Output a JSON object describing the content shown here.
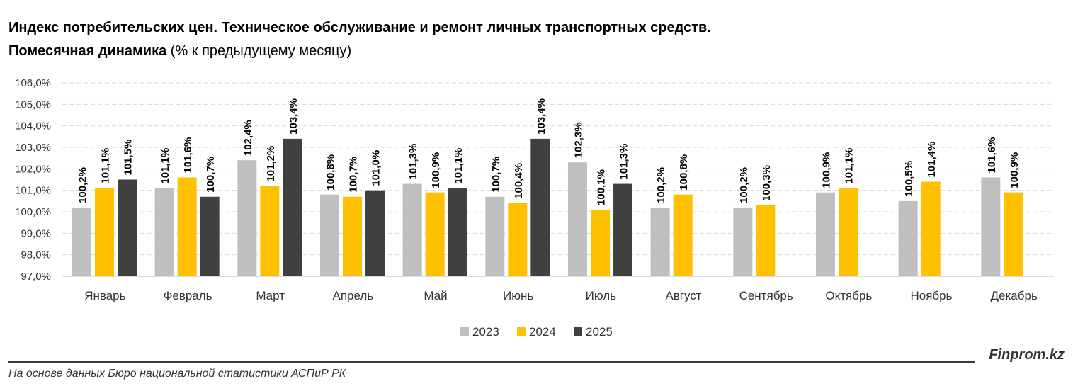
{
  "header": {
    "title": "Индекс потребительских цен. Техническое обслуживание и ремонт личных транспортных средств.",
    "subtitle_bold": "Помесячная динамика",
    "subtitle_rest": "(% к предыдущему месяцу)"
  },
  "footer": {
    "brand": "Finprom.kz",
    "source": "На основе данных Бюро национальной статистики АСПиР РК"
  },
  "chart_data": {
    "type": "bar",
    "title": "Индекс потребительских цен. Техническое обслуживание и ремонт личных транспортных средств. Помесячная динамика (% к предыдущему месяцу)",
    "xlabel": "",
    "ylabel": "",
    "ylim": [
      97.0,
      106.0
    ],
    "yticks": [
      97,
      98,
      99,
      100,
      101,
      102,
      103,
      104,
      105,
      106
    ],
    "ytick_labels": [
      "97,0%",
      "98,0%",
      "99,0%",
      "100,0%",
      "101,0%",
      "102,0%",
      "103,0%",
      "104,0%",
      "105,0%",
      "106,0%"
    ],
    "grid": true,
    "legend_position": "bottom-center",
    "categories": [
      "Январь",
      "Февраль",
      "Март",
      "Апрель",
      "Май",
      "Июнь",
      "Июль",
      "Август",
      "Сентябрь",
      "Октябрь",
      "Ноябрь",
      "Декабрь"
    ],
    "series": [
      {
        "name": "2023",
        "color": "#BFBFBF",
        "values": [
          100.2,
          101.1,
          102.4,
          100.8,
          101.3,
          100.7,
          102.3,
          100.2,
          100.2,
          100.9,
          100.5,
          101.6
        ],
        "labels": [
          "100,2%",
          "101,1%",
          "102,4%",
          "100,8%",
          "101,3%",
          "100,7%",
          "102,3%",
          "100,2%",
          "100,2%",
          "100,9%",
          "100,5%",
          "101,6%"
        ]
      },
      {
        "name": "2024",
        "color": "#FFC000",
        "values": [
          101.1,
          101.6,
          101.2,
          100.7,
          100.9,
          100.4,
          100.1,
          100.8,
          100.3,
          101.1,
          101.4,
          100.9
        ],
        "labels": [
          "101,1%",
          "101,6%",
          "101,2%",
          "100,7%",
          "100,9%",
          "100,4%",
          "100,1%",
          "100,8%",
          "100,3%",
          "101,1%",
          "101,4%",
          "100,9%"
        ]
      },
      {
        "name": "2025",
        "color": "#404040",
        "values": [
          101.5,
          100.7,
          103.4,
          101.0,
          101.1,
          103.4,
          101.3,
          null,
          null,
          null,
          null,
          null
        ],
        "labels": [
          "101,5%",
          "100,7%",
          "103,4%",
          "101,0%",
          "101,1%",
          "103,4%",
          "101,3%",
          null,
          null,
          null,
          null,
          null
        ]
      }
    ]
  }
}
